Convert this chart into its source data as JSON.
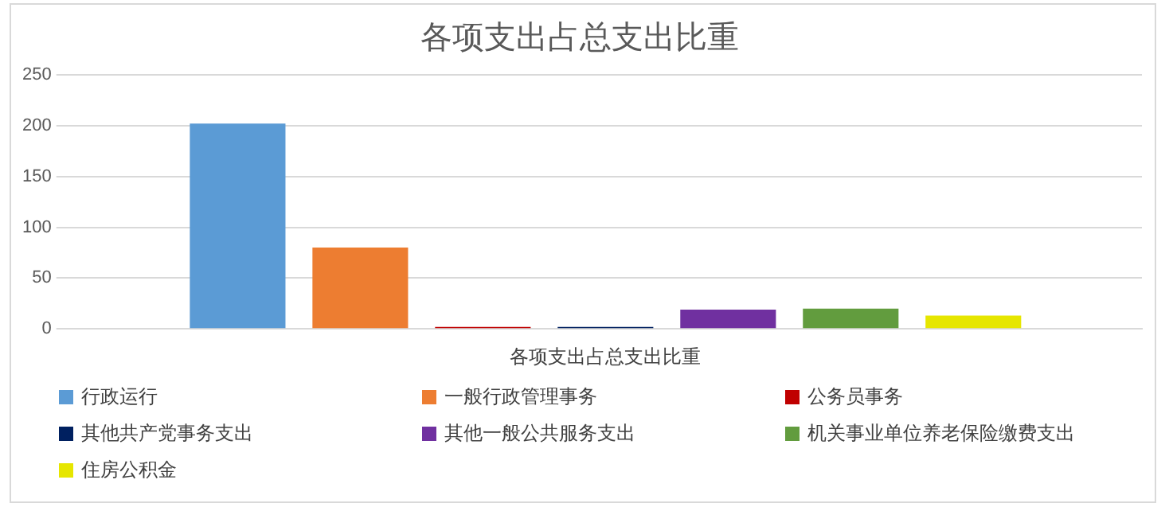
{
  "chart_data": {
    "type": "bar",
    "title": "各项支出占总支出比重",
    "categories": [
      "各项支出占总支出比重"
    ],
    "series": [
      {
        "name": "行政运行",
        "color": "#5b9bd5",
        "values": [
          202
        ]
      },
      {
        "name": "一般行政管理事务",
        "color": "#ed7d31",
        "values": [
          80
        ]
      },
      {
        "name": "公务员事务",
        "color": "#c00000",
        "values": [
          2
        ]
      },
      {
        "name": "其他共产党事务支出",
        "color": "#002060",
        "values": [
          2
        ]
      },
      {
        "name": "其他一般公共服务支出",
        "color": "#7030a0",
        "values": [
          19
        ]
      },
      {
        "name": "机关事业单位养老保险缴费支出",
        "color": "#629c3e",
        "values": [
          20
        ]
      },
      {
        "name": "住房公积金",
        "color": "#e6e600",
        "values": [
          13
        ]
      }
    ],
    "ylim": [
      0,
      250
    ],
    "yticks": [
      0,
      50,
      100,
      150,
      200,
      250
    ],
    "grid": "y",
    "legend": "bottom"
  }
}
